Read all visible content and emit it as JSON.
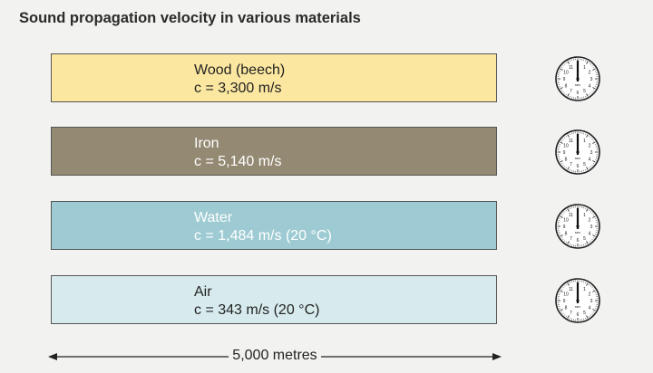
{
  "title": "Sound propagation velocity in various materials",
  "materials": [
    {
      "name": "Wood (beech)",
      "speed": "c = 3,300 m/s",
      "fill": "#fbe7a0",
      "text_color": "#222222"
    },
    {
      "name": "Iron",
      "speed": "c = 5,140 m/s",
      "fill": "#948a73",
      "text_color": "#ffffff"
    },
    {
      "name": "Water",
      "speed": "c = 1,484 m/s (20 °C)",
      "fill": "#9ecbd3",
      "text_color": "#ffffff"
    },
    {
      "name": "Air",
      "speed": "c = 343 m/s (20 °C)",
      "fill": "#d7ebee",
      "text_color": "#222222"
    }
  ],
  "stopwatch": {
    "numerals": [
      "11",
      "10",
      "9",
      "8",
      "7",
      "6",
      "5",
      "4",
      "3",
      "2",
      "1"
    ],
    "unit": "sec"
  },
  "distance": {
    "label": "5,000 metres"
  }
}
